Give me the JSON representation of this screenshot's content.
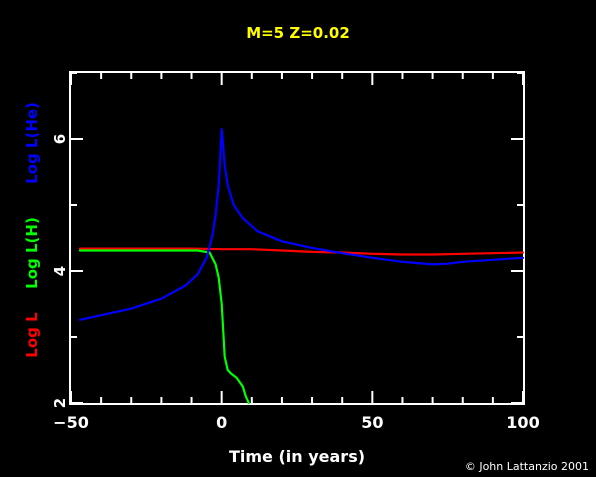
{
  "chart_data": {
    "type": "line",
    "title": "M=5 Z=0.02",
    "xlabel": "Time (in years)",
    "ylabels": [
      "Log L",
      "Log L(H)",
      "Log L(He)"
    ],
    "xlim": [
      -50,
      100
    ],
    "ylim": [
      2,
      7
    ],
    "xticks": [
      -50,
      0,
      50,
      100
    ],
    "yticks": [
      2,
      4,
      6
    ],
    "grid": false,
    "background": "#000000",
    "axis_color": "#ffffff",
    "series": [
      {
        "name": "Log L",
        "color": "#ff0000",
        "x": [
          -47,
          -30,
          -10,
          0,
          10,
          20,
          30,
          40,
          50,
          60,
          70,
          80,
          90,
          100
        ],
        "y": [
          4.34,
          4.34,
          4.34,
          4.33,
          4.33,
          4.31,
          4.29,
          4.28,
          4.26,
          4.25,
          4.25,
          4.26,
          4.27,
          4.28
        ]
      },
      {
        "name": "Log L(H)",
        "color": "#00ff00",
        "x": [
          -47,
          -30,
          -15,
          -8,
          -4,
          -2,
          -1,
          0,
          0.5,
          1,
          2,
          3,
          5,
          7,
          8,
          9
        ],
        "y": [
          4.31,
          4.31,
          4.31,
          4.31,
          4.28,
          4.1,
          3.9,
          3.5,
          3.1,
          2.7,
          2.5,
          2.45,
          2.38,
          2.25,
          2.1,
          2.0
        ]
      },
      {
        "name": "Log L(He)",
        "color": "#0000ff",
        "x": [
          -47,
          -40,
          -30,
          -20,
          -12,
          -8,
          -5,
          -3,
          -2,
          -1,
          -0.5,
          0,
          0.5,
          1,
          2,
          4,
          7,
          12,
          20,
          30,
          40,
          50,
          60,
          70,
          75,
          80,
          90,
          100
        ],
        "y": [
          3.26,
          3.33,
          3.43,
          3.58,
          3.78,
          3.95,
          4.2,
          4.55,
          4.85,
          5.3,
          5.7,
          6.15,
          5.9,
          5.6,
          5.3,
          5.0,
          4.8,
          4.6,
          4.45,
          4.35,
          4.27,
          4.2,
          4.14,
          4.1,
          4.11,
          4.14,
          4.17,
          4.2
        ]
      }
    ]
  },
  "credit": "© John Lattanzio 2001"
}
